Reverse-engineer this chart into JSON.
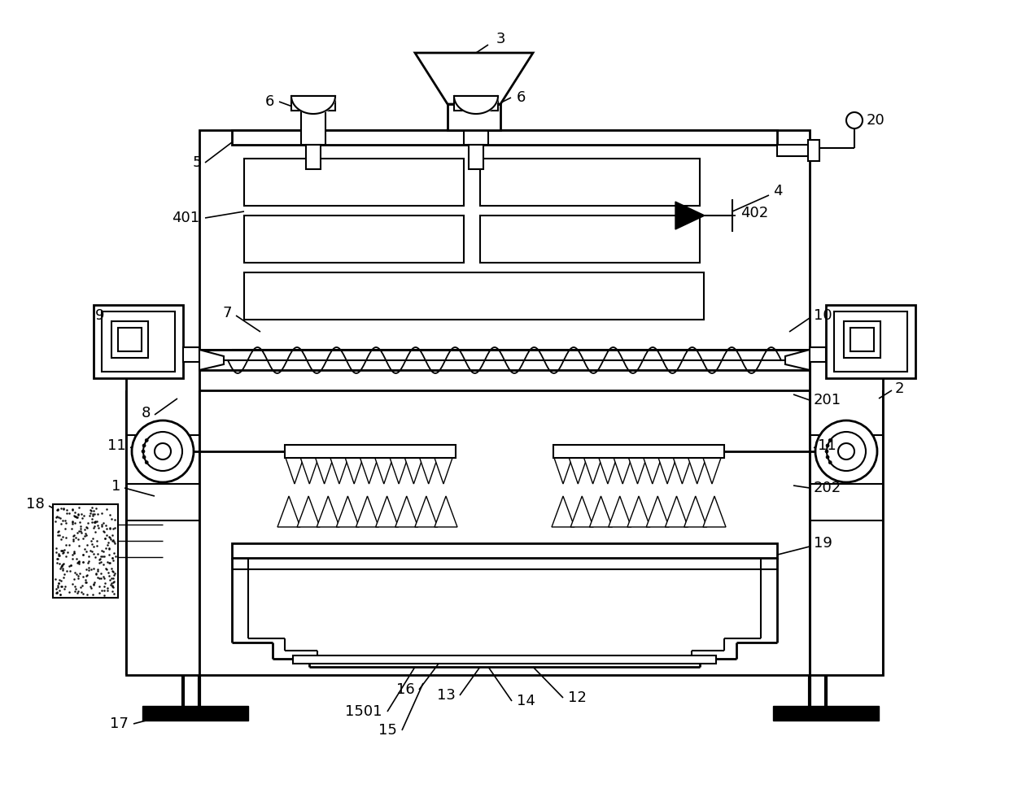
{
  "bg_color": "#ffffff",
  "lc": "#000000",
  "lfs": 13,
  "fig_w": 12.4,
  "fig_h": 9.8,
  "dpi": 100
}
